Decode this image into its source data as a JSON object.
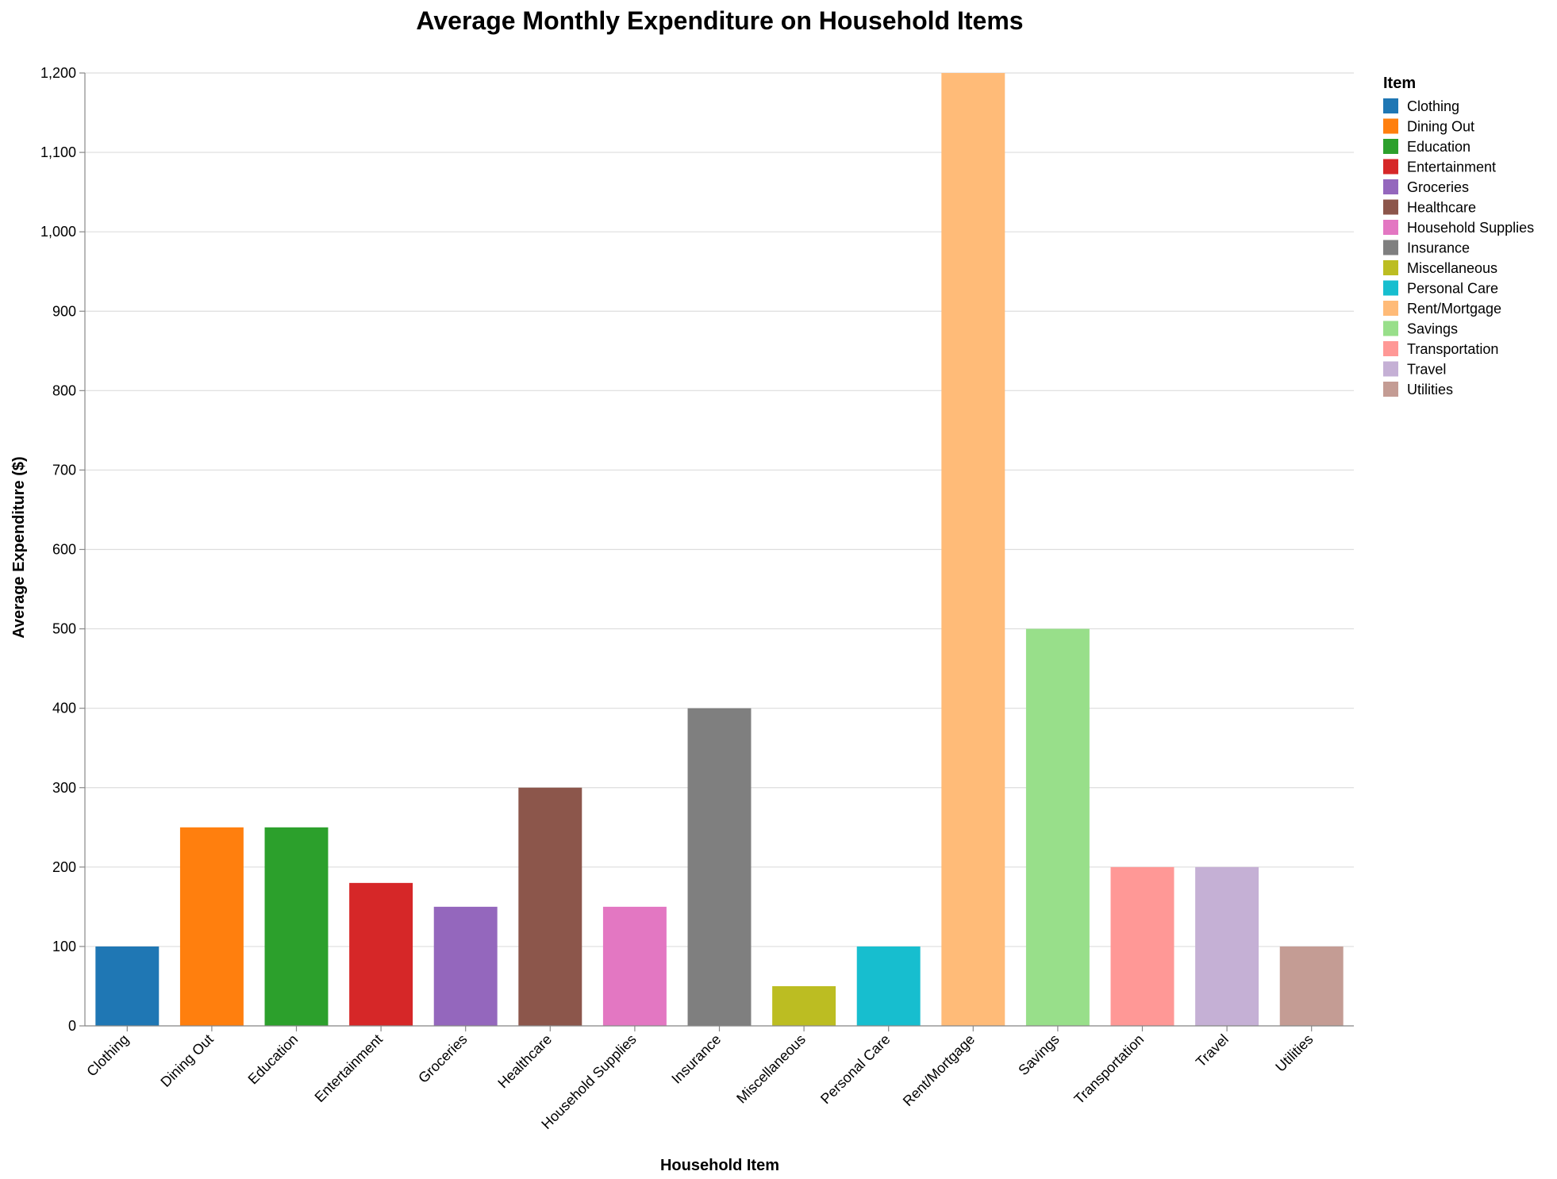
{
  "chart_data": {
    "type": "bar",
    "title": "Average Monthly Expenditure on Household Items",
    "xlabel": "Household Item",
    "ylabel": "Average Expenditure ($)",
    "ylim": [
      0,
      1200
    ],
    "yticks": [
      0,
      100,
      200,
      300,
      400,
      500,
      600,
      700,
      800,
      900,
      1000,
      1100,
      1200
    ],
    "ytick_labels": [
      "0",
      "100",
      "200",
      "300",
      "400",
      "500",
      "600",
      "700",
      "800",
      "900",
      "1,000",
      "1,100",
      "1,200"
    ],
    "grid": true,
    "legend_title": "Item",
    "legend_position": "top-right",
    "categories": [
      "Clothing",
      "Dining Out",
      "Education",
      "Entertainment",
      "Groceries",
      "Healthcare",
      "Household Supplies",
      "Insurance",
      "Miscellaneous",
      "Personal Care",
      "Rent/Mortgage",
      "Savings",
      "Transportation",
      "Travel",
      "Utilities"
    ],
    "values": [
      100,
      250,
      250,
      180,
      150,
      300,
      150,
      400,
      50,
      100,
      1200,
      500,
      200,
      200,
      100
    ],
    "colors": [
      "#1f77b4",
      "#ff7f0e",
      "#2ca02c",
      "#d62728",
      "#9467bd",
      "#8c564b",
      "#e377c2",
      "#7f7f7f",
      "#bcbd22",
      "#17becf",
      "#ffbb78",
      "#98df8a",
      "#ff9896",
      "#c5b0d5",
      "#c49c94"
    ]
  }
}
